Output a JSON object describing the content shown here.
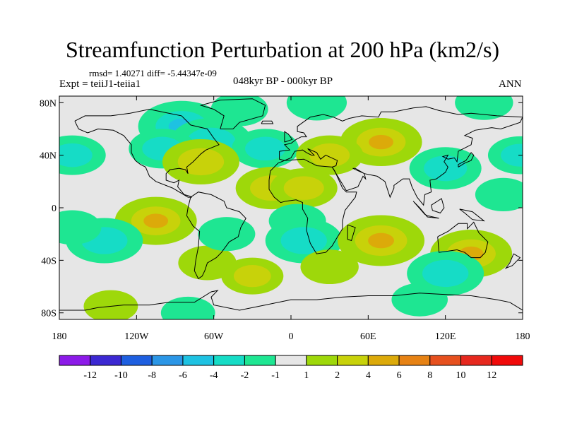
{
  "chart_data": {
    "type": "heatmap",
    "title": "Streamfunction Perturbation at 200 hPa (km2/s)",
    "stats_text": "rmsd= 1.40271 diff= -5.44347e-09",
    "experiment_text": "Expt = teiiJ1-teiia1",
    "period_text": "048kyr BP - 000kyr BP",
    "season_text": "ANN",
    "x_ticks": [
      {
        "value": -180,
        "label": "180"
      },
      {
        "value": -120,
        "label": "120W"
      },
      {
        "value": -60,
        "label": "60W"
      },
      {
        "value": 0,
        "label": "0"
      },
      {
        "value": 60,
        "label": "60E"
      },
      {
        "value": 120,
        "label": "120E"
      },
      {
        "value": 180,
        "label": "180"
      }
    ],
    "y_ticks": [
      {
        "value": 80,
        "label": "80N"
      },
      {
        "value": 40,
        "label": "40N"
      },
      {
        "value": 0,
        "label": "0"
      },
      {
        "value": -40,
        "label": "40S"
      },
      {
        "value": -80,
        "label": "80S"
      }
    ],
    "xlim": [
      -180,
      180
    ],
    "ylim": [
      -85,
      85
    ],
    "colorbar": {
      "levels": [
        -12,
        -10,
        -8,
        -6,
        -4,
        -2,
        -1,
        1,
        2,
        4,
        6,
        8,
        10,
        12
      ],
      "labels": [
        "-12",
        "-10",
        "-8",
        "-6",
        "-4",
        "-2",
        "-1",
        "1",
        "2",
        "4",
        "6",
        "8",
        "10",
        "12"
      ],
      "colors": [
        "#8c1ae8",
        "#3c28d2",
        "#1e5fe0",
        "#2b96e6",
        "#1ec2e2",
        "#16dcc6",
        "#1ee692",
        "#e6e6e6",
        "#9ed80a",
        "#c8d20a",
        "#dcaa0a",
        "#e68214",
        "#e6501e",
        "#e6281e",
        "#f00a0a"
      ]
    },
    "fields": [
      {
        "lon": -85,
        "lat": 62,
        "value": -4.5
      },
      {
        "lon": -62,
        "lat": 50,
        "value": -4.0
      },
      {
        "lon": -100,
        "lat": 45,
        "value": -2.5
      },
      {
        "lon": -170,
        "lat": 40,
        "value": -2.5
      },
      {
        "lon": -40,
        "lat": 75,
        "value": -1.5
      },
      {
        "lon": -20,
        "lat": 45,
        "value": -2.5
      },
      {
        "lon": -70,
        "lat": 35,
        "value": 3.5
      },
      {
        "lon": 20,
        "lat": 80,
        "value": -1.8
      },
      {
        "lon": 70,
        "lat": 50,
        "value": 4.0
      },
      {
        "lon": 30,
        "lat": 40,
        "value": 2.5
      },
      {
        "lon": -15,
        "lat": 15,
        "value": 3.0
      },
      {
        "lon": 10,
        "lat": 15,
        "value": 2.5
      },
      {
        "lon": 120,
        "lat": 30,
        "value": -3.0
      },
      {
        "lon": 150,
        "lat": 80,
        "value": -1.6
      },
      {
        "lon": 178,
        "lat": 40,
        "value": -2.2
      },
      {
        "lon": 165,
        "lat": 10,
        "value": -1.4
      },
      {
        "lon": -105,
        "lat": -10,
        "value": 4.0
      },
      {
        "lon": -145,
        "lat": -25,
        "value": -3.5
      },
      {
        "lon": -170,
        "lat": -15,
        "value": -1.6
      },
      {
        "lon": -65,
        "lat": -42,
        "value": 1.6
      },
      {
        "lon": -30,
        "lat": -52,
        "value": 2.0
      },
      {
        "lon": 5,
        "lat": -10,
        "value": -1.5
      },
      {
        "lon": 10,
        "lat": -25,
        "value": -3.5
      },
      {
        "lon": 30,
        "lat": -45,
        "value": 1.6
      },
      {
        "lon": -50,
        "lat": -20,
        "value": -1.5
      },
      {
        "lon": 70,
        "lat": -25,
        "value": 4.5
      },
      {
        "lon": 140,
        "lat": -35,
        "value": 4.0
      },
      {
        "lon": 120,
        "lat": -50,
        "value": -3.5
      },
      {
        "lon": 100,
        "lat": -70,
        "value": -1.4
      },
      {
        "lon": -140,
        "lat": -75,
        "value": 1.2
      },
      {
        "lon": -80,
        "lat": -80,
        "value": -1.2
      }
    ]
  }
}
